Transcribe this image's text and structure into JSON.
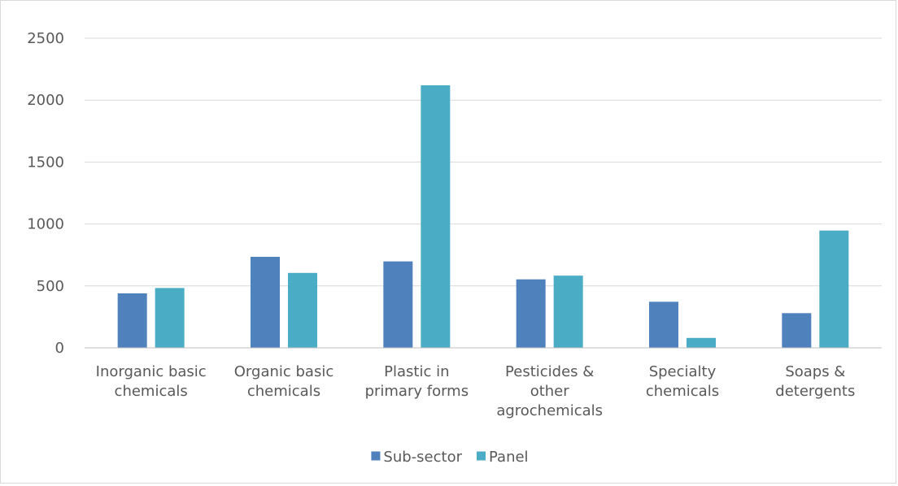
{
  "chart_data": {
    "type": "bar",
    "title": "",
    "xlabel": "",
    "ylabel": "",
    "categories": [
      [
        "Inorganic basic",
        "chemicals"
      ],
      [
        "Organic basic",
        "chemicals"
      ],
      [
        "Plastic in",
        "primary forms"
      ],
      [
        "Pesticides &",
        "other",
        "agrochemicals"
      ],
      [
        "Specialty",
        "chemicals"
      ],
      [
        "Soaps &",
        "detergents"
      ]
    ],
    "series": [
      {
        "name": "Sub-sector",
        "color": "#4f81bd",
        "values": [
          440,
          735,
          698,
          553,
          372,
          280
        ]
      },
      {
        "name": "Panel",
        "color": "#4bacc6",
        "values": [
          483,
          605,
          2120,
          583,
          80,
          947
        ]
      }
    ],
    "ylim": [
      0,
      2500
    ],
    "yticks": [
      0,
      500,
      1000,
      1500,
      2000,
      2500
    ],
    "grid": true,
    "legend": "bottom-center"
  }
}
